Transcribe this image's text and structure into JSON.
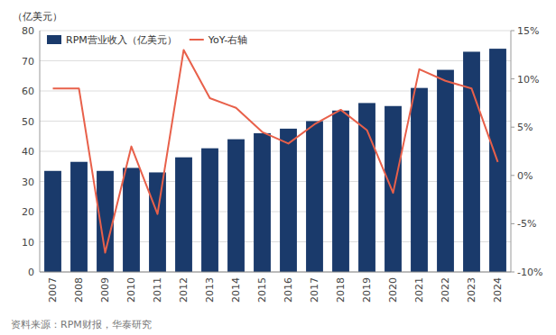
{
  "chart_data": {
    "type": "bar",
    "categories": [
      "2007",
      "2008",
      "2009",
      "2010",
      "2011",
      "2012",
      "2013",
      "2014",
      "2015",
      "2016",
      "2017",
      "2018",
      "2019",
      "2020",
      "2021",
      "2022",
      "2023",
      "2024"
    ],
    "series": [
      {
        "name": "RPM营业收入（亿美元）",
        "type": "bar",
        "color": "#1a3a6b",
        "values": [
          33.5,
          36.5,
          33.5,
          34.5,
          33.0,
          38.0,
          41.0,
          44.0,
          46.0,
          47.5,
          50.0,
          53.5,
          56.0,
          55.0,
          61.0,
          67.0,
          73.0,
          74.0
        ]
      },
      {
        "name": "YoY-右轴",
        "type": "line",
        "axis": "y2",
        "color": "#e8604a",
        "values": [
          0.09,
          0.09,
          -0.08,
          0.03,
          -0.04,
          0.13,
          0.08,
          0.07,
          0.045,
          0.033,
          0.053,
          0.068,
          0.047,
          -0.018,
          0.11,
          0.098,
          0.09,
          0.014
        ]
      }
    ],
    "y_label": "（亿美元）",
    "annotations": [
      "资料来源：RPM财报，华泰研究"
    ],
    "ylim": [
      0,
      80
    ],
    "yticks": [
      0,
      10,
      20,
      30,
      40,
      50,
      60,
      70,
      80
    ],
    "y2lim": [
      -0.1,
      0.15
    ],
    "y2ticks": [
      {
        "value": -0.1,
        "label": "-10%"
      },
      {
        "value": -0.05,
        "label": "-5%"
      },
      {
        "value": 0.0,
        "label": "0%"
      },
      {
        "value": 0.05,
        "label": "5%"
      },
      {
        "value": 0.1,
        "label": "10%"
      },
      {
        "value": 0.15,
        "label": "15%"
      }
    ],
    "grid": true,
    "legend": "upper left"
  }
}
